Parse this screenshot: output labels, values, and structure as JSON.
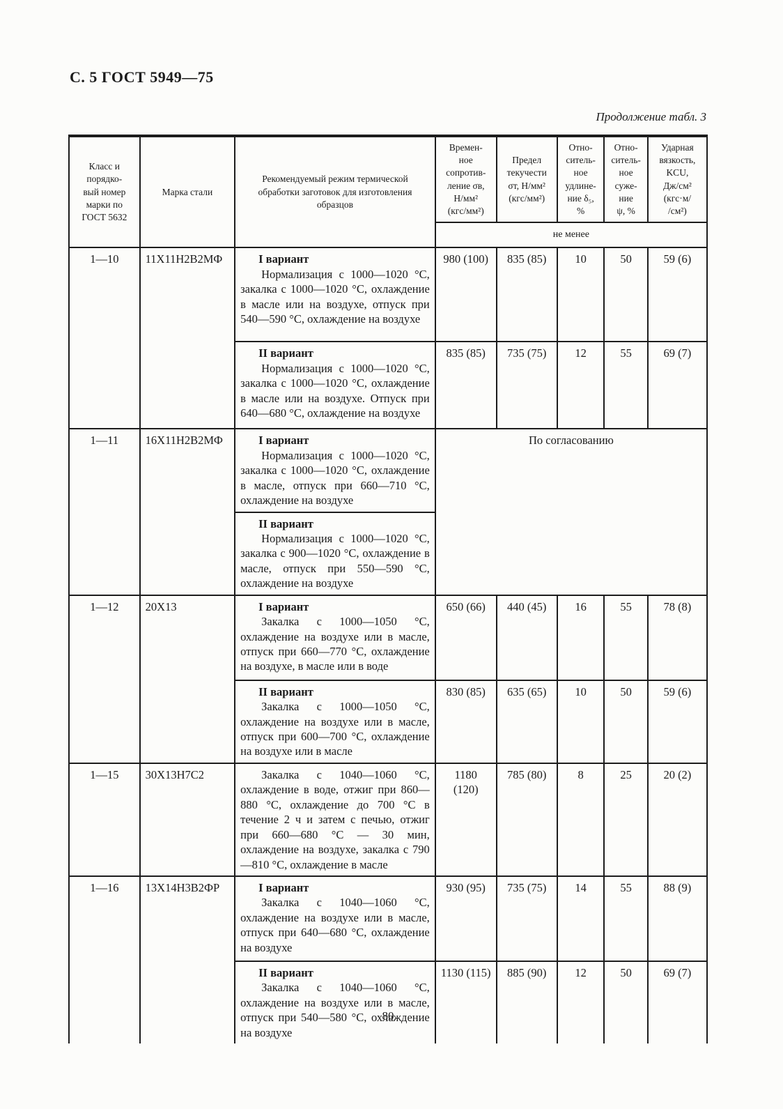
{
  "page": {
    "header_left": "С. 5 ГОСТ 5949—75",
    "caption_right": "Продолжение табл. 3",
    "page_number": "80"
  },
  "table": {
    "columns": {
      "class_number": "Класс и\nпорядко-\nвый номер\nмарки по\nГОСТ 5632",
      "steel_grade": "Марка стали",
      "treatment": "Рекомендуемый режим термической\nобработки заготовок для изготовления\nобразцов",
      "tensile_strength": "Времен-\nное\nсопротив-\nление σв,\nН/мм²\n(кгс/мм²)",
      "yield_strength": "Предел\nтекучести\nσт, Н/мм²\n(кгс/мм²)",
      "elongation": "Отно-\nситель-\nное\nудлине-\nние δ₅,\n%",
      "reduction": "Отно-\nситель-\nное\nсуже-\nние\nψ, %",
      "impact": "Ударная\nвязкость,\nKCU,\nДж/см²\n(кгс·м/\n/см²)",
      "not_less_than": "не менее"
    },
    "rows": [
      {
        "id": "1—10",
        "grade": "11Х11Н2В2МФ",
        "variants": [
          {
            "label": "I вариант",
            "text": "Нормализация с 1000—1020 °С, закалка с 1000—1020 °С, охлаждение в масле или на воздухе, отпуск при 540—590 °С, охлаждение на воздухе",
            "values": [
              "980 (100)",
              "835 (85)",
              "10",
              "50",
              "59 (6)"
            ]
          },
          {
            "label": "II вариант",
            "text": "Нормализация с 1000—1020 °С, закалка с 1000—1020 °С, охлаждение в масле или на воздухе. Отпуск при 640—680 °С, охлаждение на воздухе",
            "values": [
              "835 (85)",
              "735 (75)",
              "12",
              "55",
              "69 (7)"
            ]
          }
        ]
      },
      {
        "id": "1—11",
        "grade": "16Х11Н2В2МФ",
        "merged_note": "По согласованию",
        "variants": [
          {
            "label": "I вариант",
            "text": "Нормализация с 1000—1020 °С, закалка с 1000—1020 °С, охлаждение в масле, отпуск при 660—710 °С, охлаждение на воздухе"
          },
          {
            "label": "II вариант",
            "text": "Нормализация с 1000—1020 °С, закалка с 900—1020 °С, охлаждение в масле, отпуск при 550—590 °С, охлаждение на воздухе"
          }
        ]
      },
      {
        "id": "1—12",
        "grade": "20Х13",
        "variants": [
          {
            "label": "I вариант",
            "text": "Закалка с 1000—1050 °С, охлаждение на воздухе или в масле, отпуск при 660—770 °С, охлаждение на воздухе, в масле или в воде",
            "values": [
              "650 (66)",
              "440 (45)",
              "16",
              "55",
              "78 (8)"
            ]
          },
          {
            "label": "II вариант",
            "text": "Закалка с 1000—1050 °С, охлаждение на воздухе или в масле, отпуск при 600—700 °С, охлаждение на воздухе или в масле",
            "values": [
              "830 (85)",
              "635 (65)",
              "10",
              "50",
              "59 (6)"
            ]
          }
        ]
      },
      {
        "id": "1—15",
        "grade": "30Х13Н7С2",
        "variants": [
          {
            "label": "",
            "text": "Закалка с 1040—1060 °С, охлаждение в воде, отжиг при 860—880 °С, охлаждение до 700 °С в течение 2 ч и затем с печью, отжиг при 660—680 °С — 30 мин, охлаждение на воздухе, закалка с 790—810 °С, охлаждение в масле",
            "values": [
              "1180 (120)",
              "785 (80)",
              "8",
              "25",
              "20 (2)"
            ]
          }
        ]
      },
      {
        "id": "1—16",
        "grade": "13Х14Н3В2ФР",
        "variants": [
          {
            "label": "I вариант",
            "text": "Закалка с 1040—1060 °С, охлаждение на воздухе или в масле, отпуск при 640—680 °С, охлаждение на воздухе",
            "values": [
              "930 (95)",
              "735 (75)",
              "14",
              "55",
              "88 (9)"
            ]
          },
          {
            "label": "II вариант",
            "text": "Закалка с 1040—1060 °С, охлаждение на воздухе или в масле, отпуск при 540—580 °С, охлаждение на воздухе",
            "values": [
              "1130 (115)",
              "885 (90)",
              "12",
              "50",
              "69 (7)"
            ]
          }
        ]
      }
    ]
  }
}
